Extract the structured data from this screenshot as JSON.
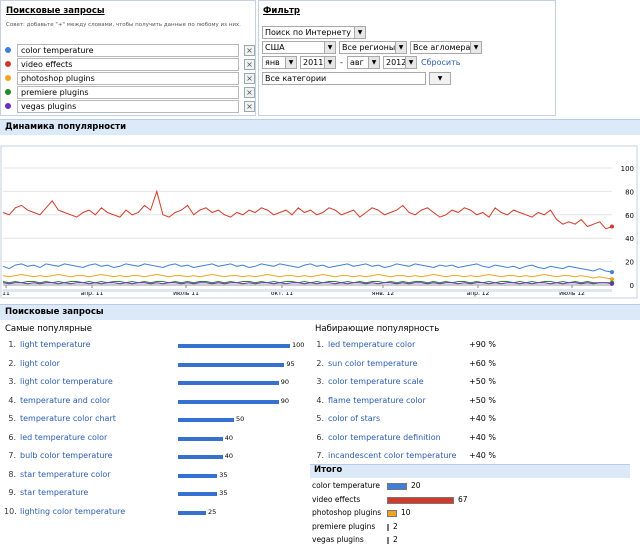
{
  "search_terms": {
    "title": "Поисковые запросы",
    "hint": "Совет: добавьте \"+\" между словами, чтобы получить данные по любому из них.",
    "terms": [
      {
        "label": "color temperature",
        "color": "#3e7fd9"
      },
      {
        "label": "video effects",
        "color": "#d13a2a"
      },
      {
        "label": "photoshop plugins",
        "color": "#f0a41f"
      },
      {
        "label": "premiere plugins",
        "color": "#228b22"
      },
      {
        "label": "vegas plugins",
        "color": "#6a2fbf"
      }
    ],
    "remove_label": "×"
  },
  "filter": {
    "title": "Фильтр",
    "search_type": "Поиск по Интернету",
    "country": "США",
    "regions": "Все регионы",
    "metros": "Все агломера",
    "from_month": "янв",
    "from_year": "2011",
    "dash": "-",
    "to_month": "авг",
    "to_year": "2012",
    "reset": "Сбросить",
    "category": "Все категории"
  },
  "popularity": {
    "title": "Динамика популярности"
  },
  "chart_data": {
    "type": "line",
    "y_ticks": [
      "100",
      "80",
      "60",
      "40",
      "20",
      "0"
    ],
    "ylim": [
      0,
      100
    ],
    "x_ticks": [
      "11",
      "апр. 11",
      "июль 11",
      "окт. 11",
      "янв. 12",
      "апр. 12",
      "июль 12"
    ],
    "series": [
      {
        "name": "video effects",
        "color": "#d13a2a",
        "values": [
          62,
          60,
          66,
          68,
          64,
          62,
          60,
          66,
          72,
          64,
          62,
          60,
          58,
          62,
          64,
          60,
          66,
          62,
          60,
          58,
          64,
          60,
          62,
          68,
          64,
          80,
          60,
          58,
          62,
          64,
          68,
          60,
          64,
          66,
          62,
          64,
          60,
          58,
          62,
          60,
          64,
          62,
          66,
          64,
          60,
          62,
          64,
          60,
          66,
          62,
          64,
          60,
          62,
          66,
          64,
          60,
          62,
          64,
          58,
          62,
          66,
          64,
          60,
          62,
          64,
          68,
          62,
          60,
          64,
          66,
          62,
          58,
          60,
          64,
          62,
          66,
          64,
          60,
          62,
          58,
          66,
          62,
          60,
          64,
          62,
          60,
          58,
          62,
          60,
          64,
          56,
          52,
          54,
          52,
          56,
          50,
          52,
          54,
          48,
          50
        ]
      },
      {
        "name": "color temperature",
        "color": "#3e7fd9",
        "values": [
          16,
          14,
          17,
          18,
          16,
          17,
          15,
          18,
          17,
          16,
          18,
          17,
          16,
          15,
          17,
          18,
          16,
          17,
          15,
          16,
          18,
          17,
          16,
          18,
          17,
          16,
          15,
          17,
          18,
          16,
          17,
          15,
          16,
          17,
          18,
          16,
          17,
          18,
          16,
          17,
          15,
          16,
          18,
          17,
          16,
          18,
          17,
          16,
          15,
          17,
          18,
          16,
          17,
          15,
          16,
          17,
          18,
          16,
          17,
          18,
          16,
          17,
          15,
          16,
          18,
          17,
          16,
          18,
          17,
          16,
          15,
          17,
          16,
          17,
          15,
          16,
          17,
          18,
          16,
          15,
          17,
          16,
          15,
          16,
          14,
          16,
          17,
          15,
          14,
          16,
          15,
          14,
          16,
          15,
          14,
          13,
          12,
          14,
          12,
          11
        ]
      },
      {
        "name": "photoshop plugins",
        "color": "#f0a41f",
        "values": [
          8,
          7,
          8,
          9,
          8,
          7,
          8,
          7,
          8,
          9,
          8,
          7,
          8,
          8,
          7,
          8,
          9,
          8,
          7,
          8,
          7,
          8,
          8,
          7,
          8,
          9,
          8,
          7,
          8,
          8,
          7,
          8,
          7,
          8,
          9,
          8,
          7,
          8,
          8,
          7,
          8,
          7,
          8,
          9,
          8,
          7,
          8,
          8,
          7,
          8,
          7,
          8,
          9,
          8,
          7,
          8,
          8,
          7,
          8,
          7,
          8,
          9,
          8,
          7,
          8,
          8,
          7,
          8,
          7,
          8,
          9,
          8,
          7,
          8,
          8,
          7,
          8,
          7,
          8,
          9,
          8,
          7,
          8,
          8,
          7,
          8,
          7,
          8,
          9,
          8,
          7,
          8,
          8,
          7,
          8,
          7,
          6,
          7,
          6,
          5
        ]
      },
      {
        "name": "premiere plugins",
        "color": "#228b22",
        "values": [
          3,
          2,
          3,
          2,
          3,
          3,
          2,
          3,
          2,
          3,
          2,
          3,
          3,
          2,
          3,
          2,
          3,
          2,
          3,
          3,
          2,
          3,
          2,
          3,
          2,
          3,
          3,
          2,
          3,
          2,
          3,
          2,
          3,
          3,
          2,
          3,
          2,
          3,
          2,
          3,
          3,
          2,
          3,
          2,
          3,
          2,
          3,
          3,
          2,
          3,
          2,
          3,
          2,
          3,
          3,
          2,
          3,
          2,
          3,
          2,
          3,
          3,
          2,
          3,
          2,
          3,
          2,
          3,
          3,
          2,
          3,
          2,
          3,
          2,
          3,
          3,
          2,
          3,
          2,
          3,
          2,
          3,
          3,
          2,
          3,
          2,
          3,
          2,
          3,
          3,
          2,
          3,
          2,
          3,
          2,
          3,
          2,
          2,
          2,
          2
        ]
      },
      {
        "name": "vegas plugins",
        "color": "#6a2fbf",
        "values": [
          2,
          1,
          2,
          2,
          1,
          2,
          1,
          2,
          2,
          1,
          2,
          1,
          2,
          2,
          1,
          2,
          1,
          2,
          2,
          1,
          2,
          1,
          2,
          2,
          1,
          2,
          1,
          2,
          2,
          1,
          2,
          1,
          2,
          2,
          1,
          2,
          1,
          2,
          2,
          1,
          2,
          1,
          2,
          2,
          1,
          2,
          1,
          2,
          2,
          1,
          2,
          1,
          2,
          2,
          1,
          2,
          1,
          2,
          2,
          1,
          2,
          1,
          2,
          2,
          1,
          2,
          1,
          2,
          2,
          1,
          2,
          1,
          2,
          2,
          1,
          2,
          1,
          2,
          2,
          1,
          2,
          1,
          2,
          2,
          1,
          2,
          1,
          2,
          2,
          1,
          2,
          1,
          2,
          2,
          1,
          2,
          1,
          2,
          2,
          1
        ]
      }
    ]
  },
  "queries": {
    "title": "Поисковые запросы",
    "top_title": "Самые популярные",
    "top": [
      {
        "n": "1.",
        "label": "light temperature",
        "value": 100
      },
      {
        "n": "2.",
        "label": "light color",
        "value": 95
      },
      {
        "n": "3.",
        "label": "light color temperature",
        "value": 90
      },
      {
        "n": "4.",
        "label": "temperature and color",
        "value": 90
      },
      {
        "n": "5.",
        "label": "temperature color chart",
        "value": 50
      },
      {
        "n": "6.",
        "label": "led temperature color",
        "value": 40
      },
      {
        "n": "7.",
        "label": "bulb color temperature",
        "value": 40
      },
      {
        "n": "8.",
        "label": "star temperature color",
        "value": 35
      },
      {
        "n": "9.",
        "label": "star temperature",
        "value": 35
      },
      {
        "n": "10.",
        "label": "lighting color temperature",
        "value": 25
      }
    ],
    "rising_title": "Набирающие популярность",
    "rising": [
      {
        "n": "1.",
        "label": "led temperature color",
        "value": "+90 %"
      },
      {
        "n": "2.",
        "label": "sun color temperature",
        "value": "+60 %"
      },
      {
        "n": "3.",
        "label": "color temperature scale",
        "value": "+50 %"
      },
      {
        "n": "4.",
        "label": "flame temperature color",
        "value": "+50 %"
      },
      {
        "n": "5.",
        "label": "color of stars",
        "value": "+40 %"
      },
      {
        "n": "6.",
        "label": "color temperature definition",
        "value": "+40 %"
      },
      {
        "n": "7.",
        "label": "incandescent color temperature",
        "value": "+40 %"
      }
    ]
  },
  "totals": {
    "title": "Итого",
    "rows": [
      {
        "label": "color temperature",
        "value": 20,
        "color": "#3e7fd9"
      },
      {
        "label": "video effects",
        "value": 67,
        "color": "#d13a2a"
      },
      {
        "label": "photoshop plugins",
        "value": 10,
        "color": "#f0a41f"
      },
      {
        "label": "premiere plugins",
        "value": 2,
        "color": "#228b22"
      },
      {
        "label": "vegas plugins",
        "value": 2,
        "color": "#6a2fbf"
      }
    ]
  }
}
